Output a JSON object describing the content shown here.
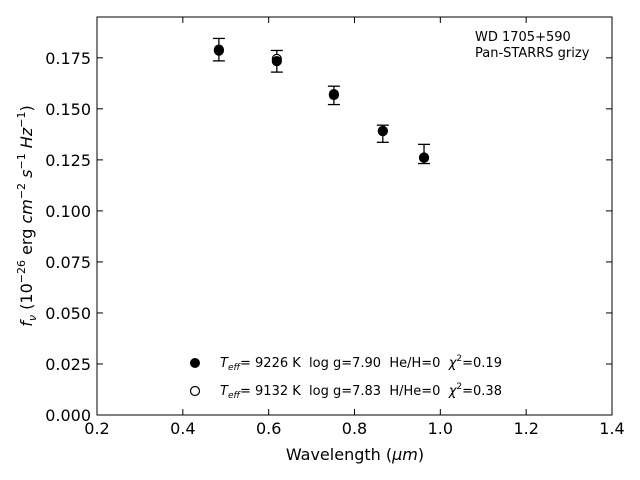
{
  "chart_data": {
    "type": "scatter",
    "title": "",
    "xlabel": {
      "text": "Wavelength (",
      "unit": "μm",
      "suffix": ")"
    },
    "ylabel": {
      "symbol": "f",
      "symbol_sub": "ν",
      "prefix": " (10",
      "exp": "−26",
      "unit_erg": " erg ",
      "cm": "cm",
      "cm_exp": "−2",
      "s": "s",
      "s_exp": "−1",
      "hz": "Hz",
      "hz_exp": "−1",
      "close": ")"
    },
    "xlim": [
      0.2,
      1.4
    ],
    "ylim": [
      0.0,
      0.195
    ],
    "xticks": [
      0.2,
      0.4,
      0.6,
      0.8,
      1.0,
      1.2,
      1.4
    ],
    "xtick_labels": [
      "0.2",
      "0.4",
      "0.6",
      "0.8",
      "1.0",
      "1.2",
      "1.4"
    ],
    "yticks": [
      0.0,
      0.025,
      0.05,
      0.075,
      0.1,
      0.125,
      0.15,
      0.175
    ],
    "ytick_labels": [
      "0.000",
      "0.025",
      "0.050",
      "0.075",
      "0.100",
      "0.125",
      "0.150",
      "0.175"
    ],
    "grid": false,
    "annotations": [
      "WD 1705+590",
      "Pan-STARRS grizy"
    ],
    "observed": {
      "x": [
        0.484,
        0.619,
        0.752,
        0.866,
        0.962
      ],
      "y": [
        0.179,
        0.1733,
        0.1566,
        0.1388,
        0.1274
      ],
      "yerr_low": [
        0.0055,
        0.0053,
        0.0045,
        0.0052,
        0.0042
      ],
      "yerr_high": [
        0.0055,
        0.0053,
        0.0045,
        0.0032,
        0.0052
      ]
    },
    "series": [
      {
        "marker": "filled",
        "x": [
          0.484,
          0.619,
          0.752,
          0.866,
          0.962
        ],
        "y": [
          0.1785,
          0.1734,
          0.1568,
          0.1391,
          0.126
        ],
        "legend": {
          "teff_sym": "T",
          "teff_sub": "eff",
          "eq": "=  ",
          "text": "9226 K  log g=7.90  He/H=0  ",
          "chi": "χ",
          "chi_exp": "2",
          "chi_val": "=0.19"
        }
      },
      {
        "marker": "open",
        "x": [
          0.484,
          0.619,
          0.752,
          0.866,
          0.962
        ],
        "y": [
          0.179,
          0.1745,
          0.1572,
          0.1392,
          0.1262
        ],
        "legend": {
          "teff_sym": "T",
          "teff_sub": "eff",
          "eq": "=  ",
          "text": "9132 K  log g=7.83  H/He=0  ",
          "chi": "χ",
          "chi_exp": "2",
          "chi_val": "=0.38"
        }
      }
    ],
    "legend_location": "bottom-center"
  }
}
